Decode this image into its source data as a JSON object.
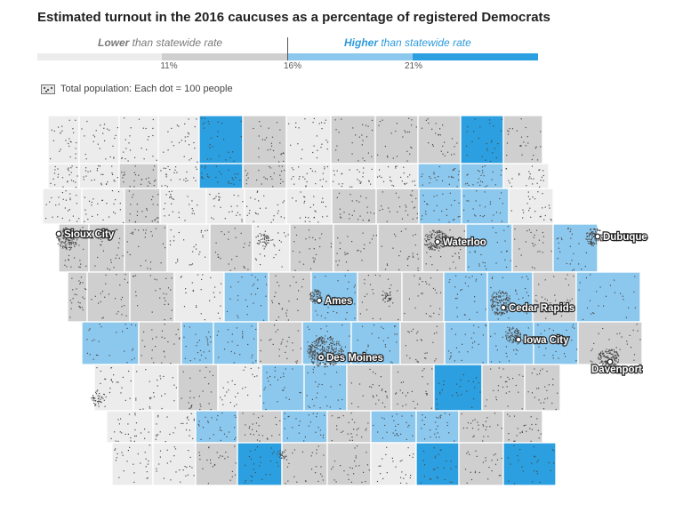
{
  "title": "Estimated turnout in the 2016 caucuses as a percentage of registered Democrats",
  "legend": {
    "lower_bold": "Lower",
    "lower_rest": " than statewide rate",
    "higher_bold": "Higher",
    "higher_rest": " than statewide rate",
    "ticks": [
      "11%",
      "16%",
      "21%"
    ],
    "bins": [
      {
        "label": "below 11%",
        "color": "#ececec"
      },
      {
        "label": "11% to 16%",
        "color": "#cfcfcf"
      },
      {
        "label": "16% to 21%",
        "color": "#8cc8ee"
      },
      {
        "label": "above 21%",
        "color": "#2b9fe0"
      }
    ],
    "population_note": "Total population: Each dot = 100 people"
  },
  "cities": [
    {
      "name": "Sioux City",
      "capital": false
    },
    {
      "name": "Waterloo",
      "capital": false
    },
    {
      "name": "Dubuque",
      "capital": false
    },
    {
      "name": "Ames",
      "capital": false
    },
    {
      "name": "Cedar Rapids",
      "capital": false
    },
    {
      "name": "Iowa City",
      "capital": false
    },
    {
      "name": "Des Moines",
      "capital": true
    },
    {
      "name": "Davenport",
      "capital": false
    }
  ],
  "colors": {
    "border": "#ffffff",
    "dot": "#4a4a4a",
    "label_fill": "#ffffff",
    "label_stroke": "#222222"
  }
}
